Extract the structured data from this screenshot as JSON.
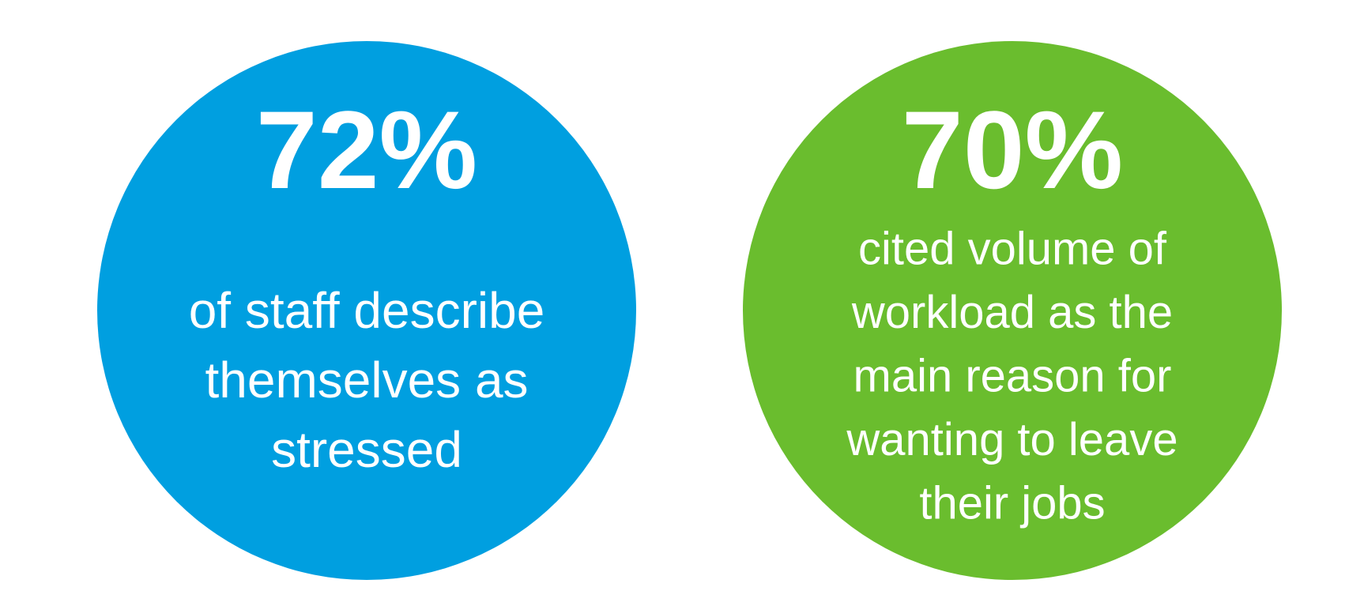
{
  "stats": [
    {
      "figure": "72%",
      "lines": [
        "of staff describe",
        "themselves as",
        "stressed"
      ]
    },
    {
      "figure": "70%",
      "lines": [
        "cited volume of",
        "workload as the",
        "main reason for",
        "wanting to leave",
        "their jobs"
      ]
    }
  ]
}
